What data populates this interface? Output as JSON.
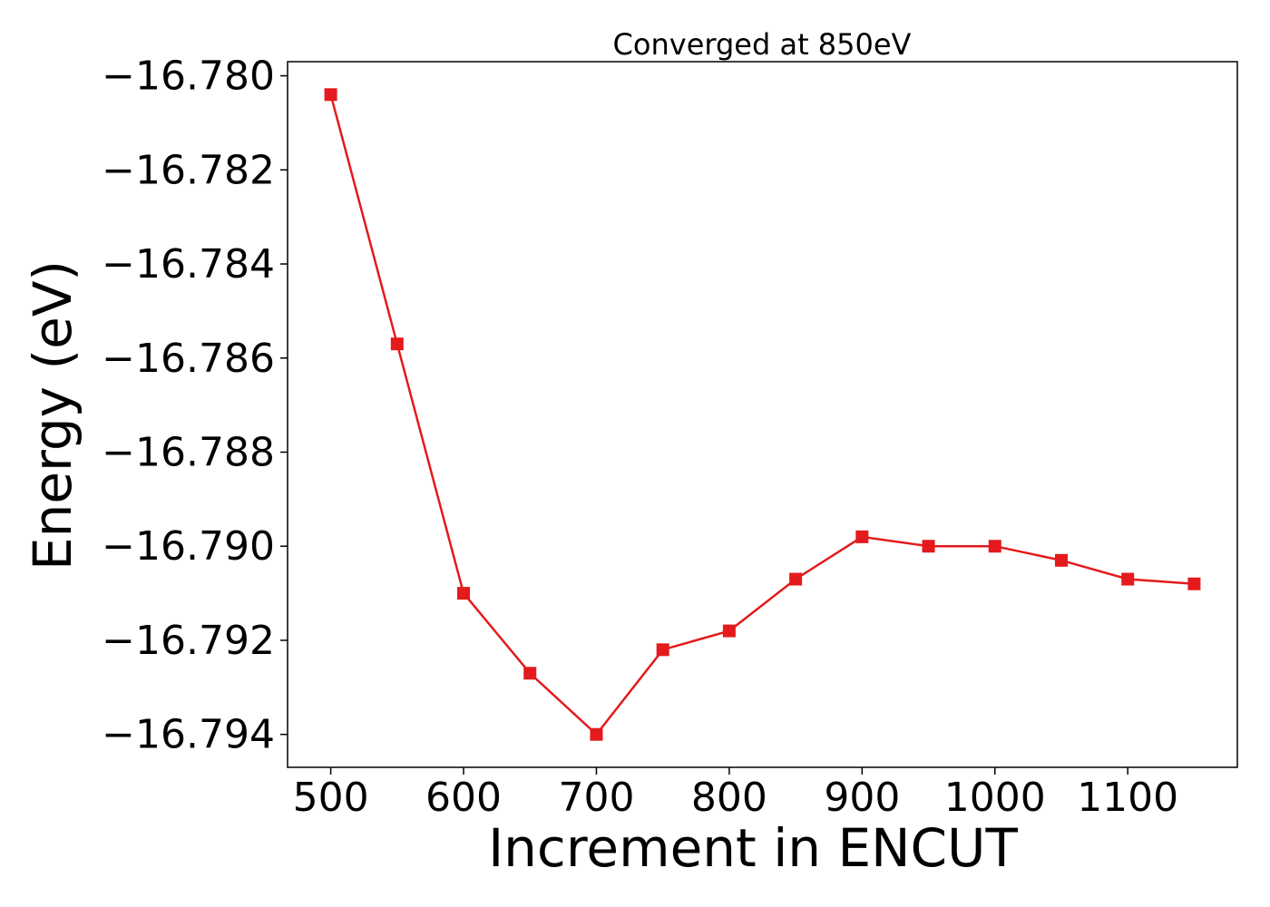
{
  "chart_data": {
    "type": "line",
    "title": "Converged at 850eV",
    "xlabel": "Increment in ENCUT",
    "ylabel": "Energy (eV)",
    "x": [
      500,
      550,
      600,
      650,
      700,
      750,
      800,
      850,
      900,
      950,
      1000,
      1050,
      1100,
      1150
    ],
    "series": [
      {
        "values": [
          -16.7804,
          -16.7857,
          -16.791,
          -16.7927,
          -16.794,
          -16.7922,
          -16.7918,
          -16.7907,
          -16.7898,
          -16.79,
          -16.79,
          -16.7903,
          -16.7907,
          -16.7908
        ],
        "color": "#e41a1c",
        "marker": "square"
      }
    ],
    "xlim": [
      467.5,
      1182.5
    ],
    "ylim": [
      -16.7947,
      -16.7797
    ],
    "xticks": [
      500,
      600,
      700,
      800,
      900,
      1000,
      1100
    ],
    "xtick_labels": [
      "500",
      "600",
      "700",
      "800",
      "900",
      "1000",
      "1100"
    ],
    "yticks": [
      -16.78,
      -16.782,
      -16.784,
      -16.786,
      -16.788,
      -16.79,
      -16.792,
      -16.794
    ],
    "ytick_labels": [
      "−16.780",
      "−16.782",
      "−16.784",
      "−16.786",
      "−16.788",
      "−16.790",
      "−16.792",
      "−16.794"
    ],
    "grid": false,
    "legend": "none"
  }
}
